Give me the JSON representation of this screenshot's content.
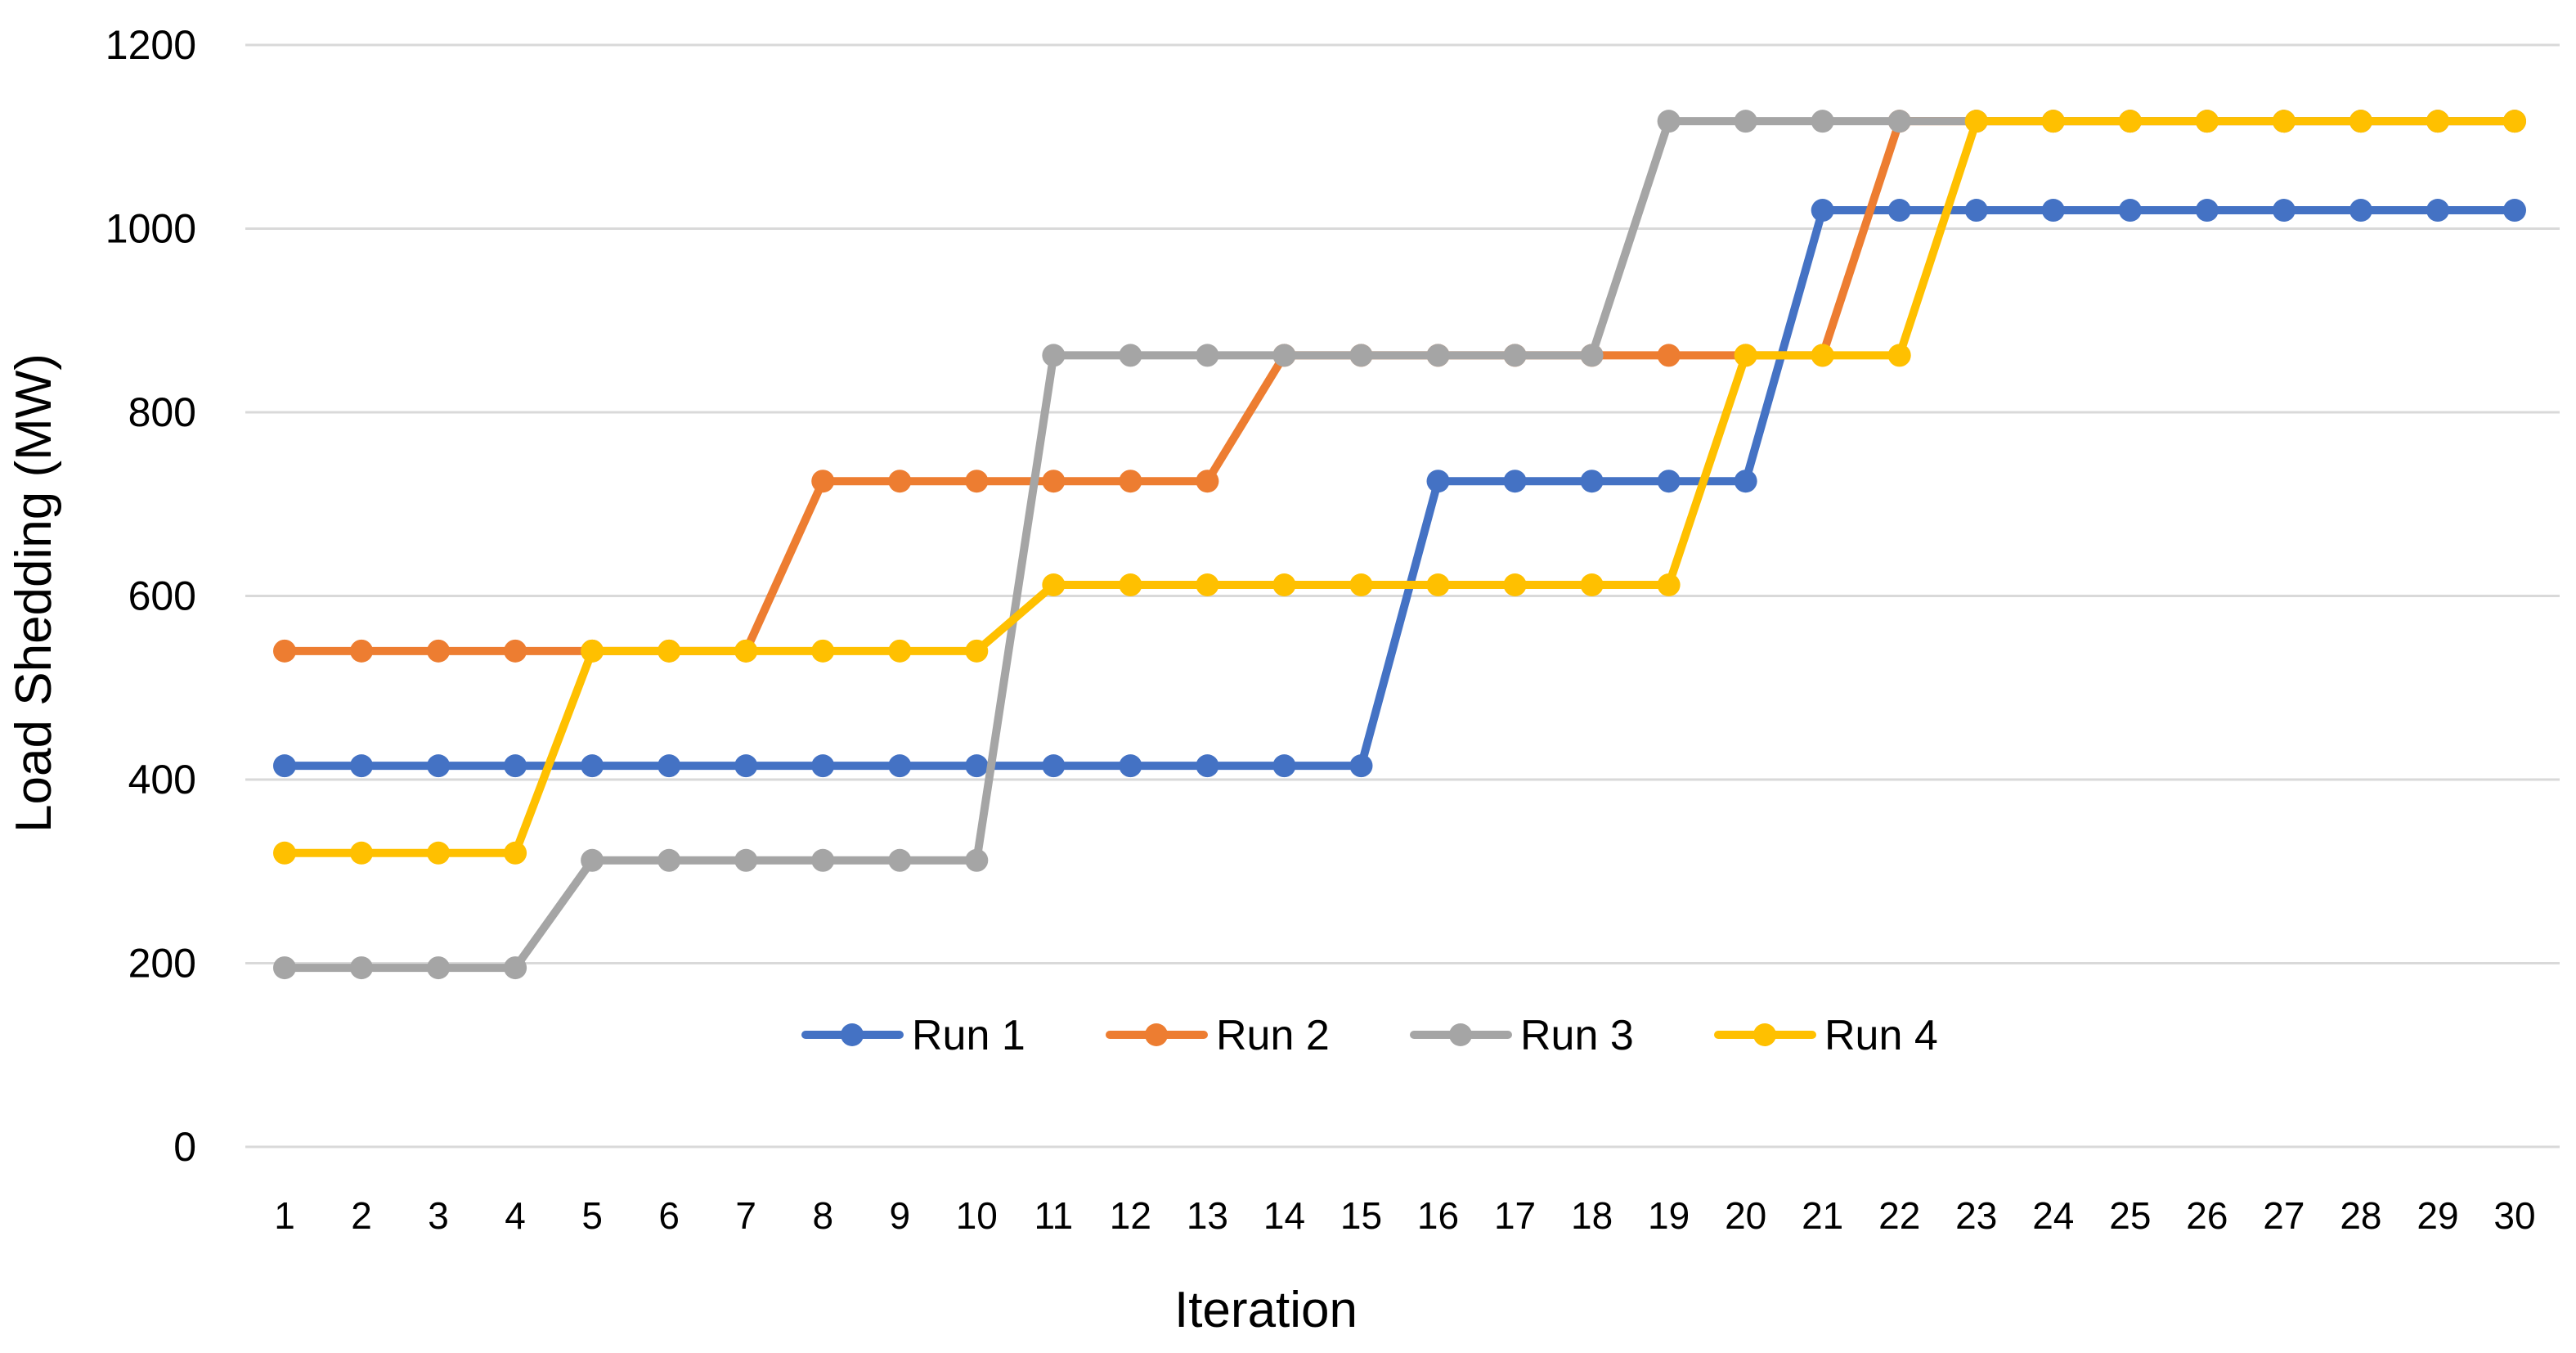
{
  "chart_data": {
    "type": "line",
    "title": "",
    "xlabel": "Iteration",
    "ylabel": "Load Shedding (MW)",
    "ylim": [
      0,
      1200
    ],
    "yticks": [
      0,
      200,
      400,
      600,
      800,
      1000,
      1200
    ],
    "x": [
      1,
      2,
      3,
      4,
      5,
      6,
      7,
      8,
      9,
      10,
      11,
      12,
      13,
      14,
      15,
      16,
      17,
      18,
      19,
      20,
      21,
      22,
      23,
      24,
      25,
      26,
      27,
      28,
      29,
      30
    ],
    "grid": true,
    "legend": "inside-bottom-center",
    "series": [
      {
        "name": "Run 1",
        "color": "#4472c4",
        "values": [
          415,
          415,
          415,
          415,
          415,
          415,
          415,
          415,
          415,
          415,
          415,
          415,
          415,
          415,
          415,
          725,
          725,
          725,
          725,
          725,
          1020,
          1020,
          1020,
          1020,
          1020,
          1020,
          1020,
          1020,
          1020,
          1020
        ]
      },
      {
        "name": "Run 2",
        "color": "#ed7d31",
        "values": [
          540,
          540,
          540,
          540,
          540,
          540,
          540,
          725,
          725,
          725,
          725,
          725,
          725,
          862,
          862,
          862,
          862,
          862,
          862,
          862,
          862,
          1117,
          1117,
          1117,
          1117,
          1117,
          1117,
          1117,
          1117,
          1117
        ]
      },
      {
        "name": "Run 3",
        "color": "#a5a5a5",
        "values": [
          195,
          195,
          195,
          195,
          312,
          312,
          312,
          312,
          312,
          312,
          862,
          862,
          862,
          862,
          862,
          862,
          862,
          862,
          1117,
          1117,
          1117,
          1117,
          1117,
          1117,
          1117,
          1117,
          1117,
          1117,
          1117,
          1117
        ]
      },
      {
        "name": "Run 4",
        "color": "#ffc000",
        "values": [
          320,
          320,
          320,
          320,
          540,
          540,
          540,
          540,
          540,
          540,
          612,
          612,
          612,
          612,
          612,
          612,
          612,
          612,
          612,
          862,
          862,
          862,
          1117,
          1117,
          1117,
          1117,
          1117,
          1117,
          1117,
          1117
        ]
      }
    ]
  }
}
